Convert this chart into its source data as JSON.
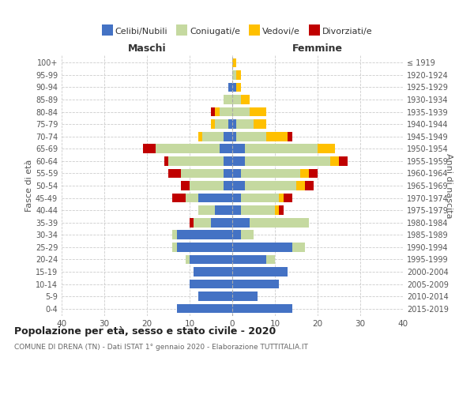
{
  "age_groups": [
    "0-4",
    "5-9",
    "10-14",
    "15-19",
    "20-24",
    "25-29",
    "30-34",
    "35-39",
    "40-44",
    "45-49",
    "50-54",
    "55-59",
    "60-64",
    "65-69",
    "70-74",
    "75-79",
    "80-84",
    "85-89",
    "90-94",
    "95-99",
    "100+"
  ],
  "birth_years": [
    "2015-2019",
    "2010-2014",
    "2005-2009",
    "2000-2004",
    "1995-1999",
    "1990-1994",
    "1985-1989",
    "1980-1984",
    "1975-1979",
    "1970-1974",
    "1965-1969",
    "1960-1964",
    "1955-1959",
    "1950-1954",
    "1945-1949",
    "1940-1944",
    "1935-1939",
    "1930-1934",
    "1925-1929",
    "1920-1924",
    "≤ 1919"
  ],
  "colors": {
    "celibi": "#4472c4",
    "coniugati": "#c5d9a0",
    "vedovi": "#ffc000",
    "divorziati": "#c00000"
  },
  "maschi": {
    "celibi": [
      13,
      8,
      10,
      9,
      10,
      13,
      13,
      5,
      4,
      8,
      2,
      2,
      2,
      3,
      2,
      1,
      0,
      0,
      1,
      0,
      0
    ],
    "coniugati": [
      0,
      0,
      0,
      0,
      1,
      1,
      1,
      4,
      4,
      3,
      8,
      10,
      13,
      15,
      5,
      3,
      3,
      2,
      0,
      0,
      0
    ],
    "vedovi": [
      0,
      0,
      0,
      0,
      0,
      0,
      0,
      0,
      0,
      0,
      0,
      0,
      0,
      0,
      1,
      1,
      1,
      0,
      0,
      0,
      0
    ],
    "divorziati": [
      0,
      0,
      0,
      0,
      0,
      0,
      0,
      1,
      0,
      3,
      2,
      3,
      1,
      3,
      0,
      0,
      1,
      0,
      0,
      0,
      0
    ]
  },
  "femmine": {
    "nubili": [
      14,
      6,
      11,
      13,
      8,
      14,
      2,
      4,
      2,
      2,
      3,
      2,
      3,
      3,
      1,
      1,
      0,
      0,
      1,
      0,
      0
    ],
    "coniugate": [
      0,
      0,
      0,
      0,
      2,
      3,
      3,
      14,
      8,
      9,
      12,
      14,
      20,
      17,
      7,
      4,
      4,
      2,
      0,
      1,
      0
    ],
    "vedove": [
      0,
      0,
      0,
      0,
      0,
      0,
      0,
      0,
      1,
      1,
      2,
      2,
      2,
      4,
      5,
      3,
      4,
      2,
      1,
      1,
      1
    ],
    "divorziate": [
      0,
      0,
      0,
      0,
      0,
      0,
      0,
      0,
      1,
      2,
      2,
      2,
      2,
      0,
      1,
      0,
      0,
      0,
      0,
      0,
      0
    ]
  },
  "xlim": 40,
  "title": "Popolazione per età, sesso e stato civile - 2020",
  "subtitle": "COMUNE DI DRENA (TN) - Dati ISTAT 1° gennaio 2020 - Elaborazione TUTTITALIA.IT",
  "xlabel_left": "Maschi",
  "xlabel_right": "Femmine",
  "ylabel_left": "Fasce di età",
  "ylabel_right": "Anni di nascita",
  "legend_labels": [
    "Celibi/Nubili",
    "Coniugati/e",
    "Vedovi/e",
    "Divorziati/e"
  ],
  "legend_colors": [
    "#4472c4",
    "#c5d9a0",
    "#ffc000",
    "#c00000"
  ]
}
